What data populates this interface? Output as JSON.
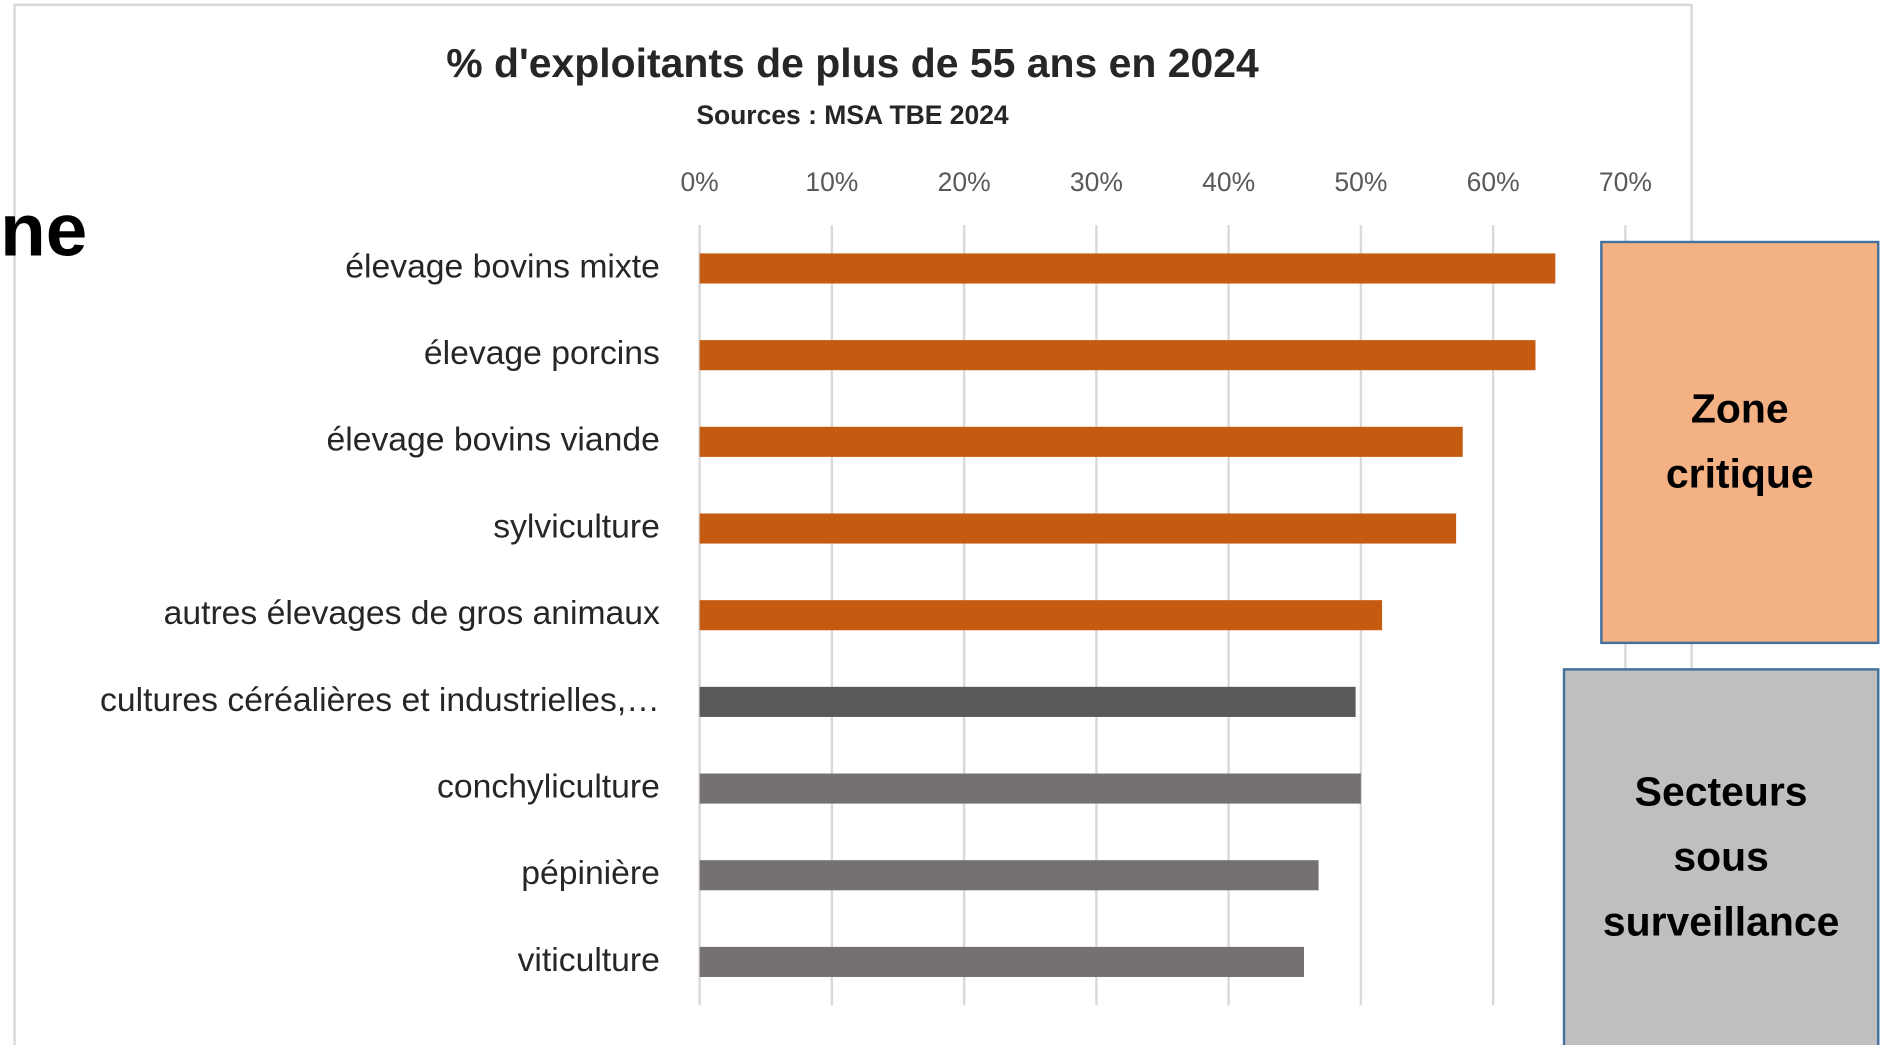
{
  "background_text": "ne",
  "chart_data": {
    "type": "bar",
    "orientation": "horizontal",
    "title": "% d'exploitants de plus de 55 ans en 2024",
    "subtitle": "Sources : MSA TBE 2024",
    "categories": [
      "élevage bovins mixte",
      "élevage porcins",
      "élevage bovins viande",
      "sylviculture",
      "autres élevages de gros animaux",
      "cultures céréalières et industrielles,…",
      "conchyliculture",
      "pépinière",
      "viticulture"
    ],
    "values": [
      64.7,
      63.2,
      57.7,
      57.2,
      51.6,
      49.6,
      50.0,
      46.8,
      45.7
    ],
    "colors": [
      "#c55a11",
      "#c55a11",
      "#c55a11",
      "#c55a11",
      "#c55a11",
      "#595959",
      "#767171",
      "#767171",
      "#767171"
    ],
    "xlim": [
      0,
      70
    ],
    "xticks": [
      {
        "value": 0,
        "label": "0%"
      },
      {
        "value": 10,
        "label": "10%"
      },
      {
        "value": 20,
        "label": "20%"
      },
      {
        "value": 30,
        "label": "30%"
      },
      {
        "value": 40,
        "label": "40%"
      },
      {
        "value": 50,
        "label": "50%"
      },
      {
        "value": 60,
        "label": "60%"
      },
      {
        "value": 70,
        "label": "70%"
      }
    ],
    "grid": true,
    "annotations": [
      {
        "lines": [
          "Zone",
          "critique"
        ],
        "color": "#f4b183"
      },
      {
        "lines": [
          "Secteurs",
          "sous",
          "surveillance"
        ],
        "color": "#bfbfbf"
      }
    ]
  }
}
